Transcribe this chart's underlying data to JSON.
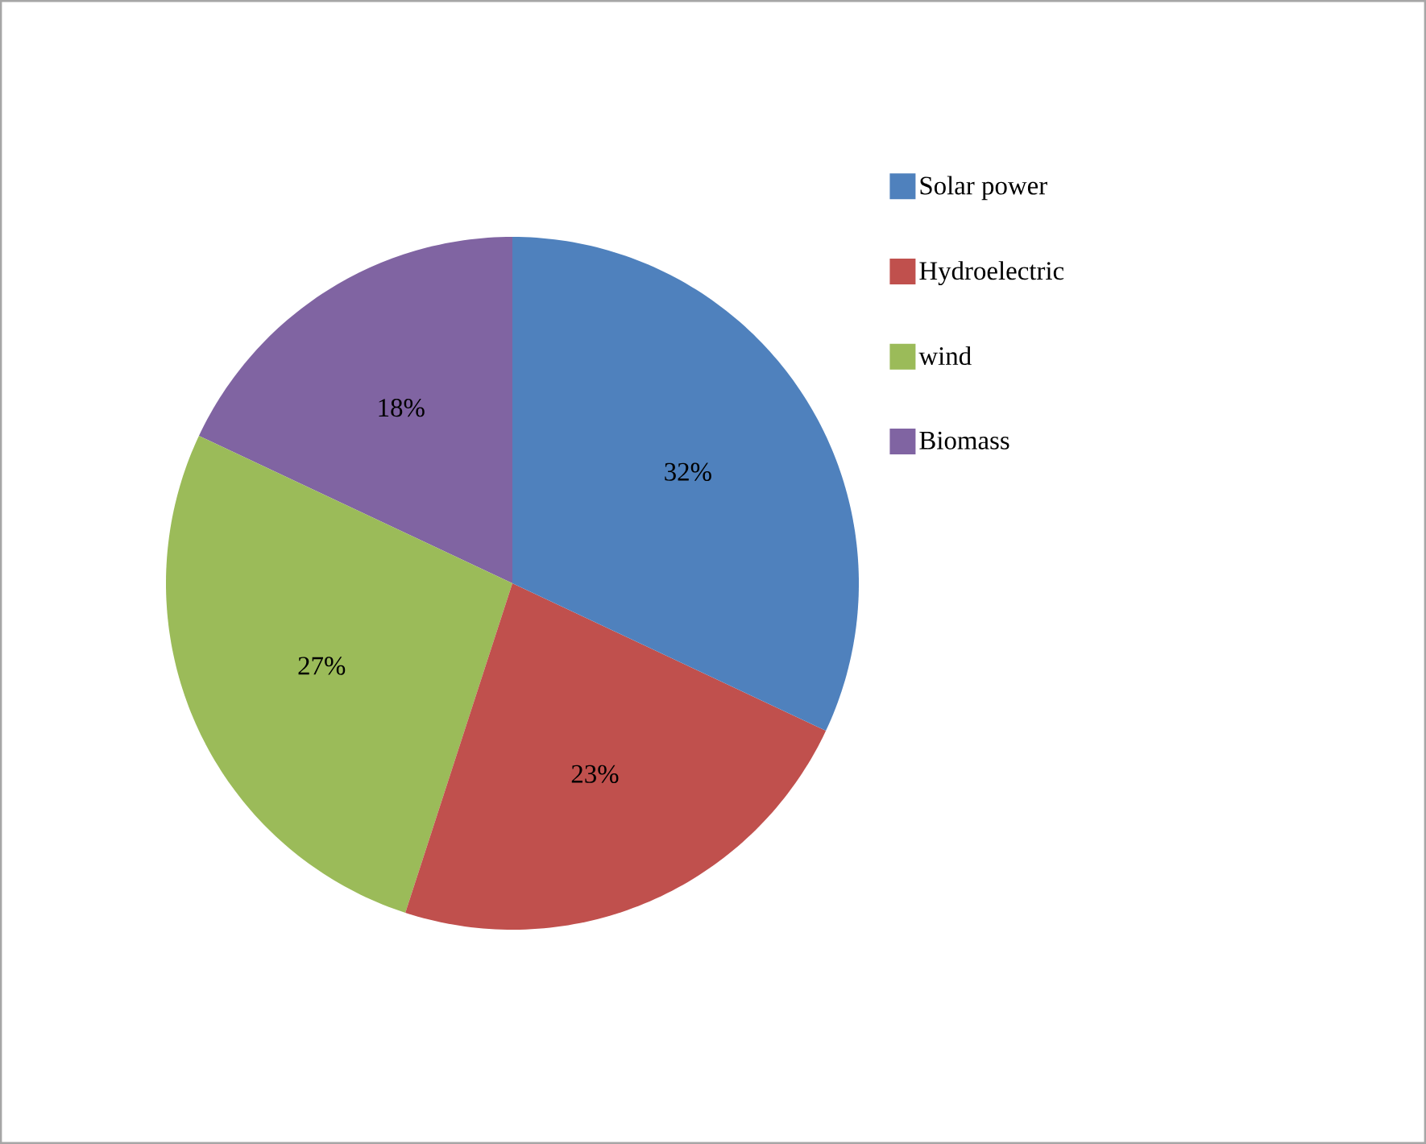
{
  "chart_data": {
    "type": "pie",
    "categories": [
      "Solar power",
      "Hydroelectric",
      "wind",
      "Biomass"
    ],
    "values": [
      32,
      23,
      27,
      18
    ],
    "value_labels": [
      "32%",
      "23%",
      "27%",
      "18%"
    ],
    "colors": [
      "#4f81bd",
      "#c0504d",
      "#9bbb59",
      "#8064a2"
    ],
    "legend": "right"
  }
}
